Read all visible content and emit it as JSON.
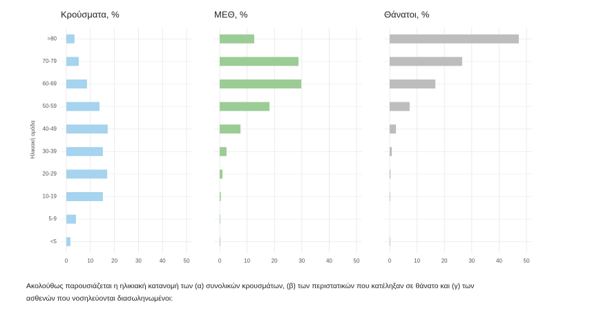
{
  "chart_data": [
    {
      "type": "hbar",
      "title": "Κρούσματα, %",
      "ylabel": "Ηλικιακή ομάδα",
      "categories": [
        ">80",
        "70-79",
        "60-69",
        "50-59",
        "40-49",
        "30-39",
        "20-29",
        "10-19",
        "5-9",
        "<5"
      ],
      "values": [
        3.4,
        5.2,
        8.6,
        13.8,
        17.2,
        15.2,
        17,
        15.2,
        4,
        1.7
      ],
      "color": "#a6d3ee",
      "xlim": [
        0,
        50
      ],
      "xticks": [
        0,
        10,
        20,
        30,
        40,
        50
      ],
      "grid": true
    },
    {
      "type": "hbar",
      "title": "ΜΕΘ, %",
      "values": [
        12.6,
        28.8,
        29.8,
        18.2,
        7.6,
        2.5,
        1,
        0.4,
        0.2,
        0.2
      ],
      "color": "#9ccc95",
      "xlim": [
        0,
        50
      ],
      "xticks": [
        0,
        10,
        20,
        30,
        40,
        50
      ],
      "grid": true
    },
    {
      "type": "hbar",
      "title": "Θάνατοι, %",
      "values": [
        47.2,
        26.5,
        16.7,
        7.3,
        2.3,
        0.8,
        0.3,
        0.2,
        0,
        0.2
      ],
      "color": "#bdbdbd",
      "xlim": [
        0,
        50
      ],
      "xticks": [
        0,
        10,
        20,
        30,
        40,
        50
      ],
      "grid": true
    }
  ],
  "caption": [
    "Ακολούθως παρουσιάζεται η ηλικιακή κατανομή των (α) συνολικών κρουσμάτων, (β) των περιστατικών που κατέληξαν σε θάνατο και (γ) των",
    "ασθενών που νοσηλεύονται διασωληνωμένοι:"
  ]
}
